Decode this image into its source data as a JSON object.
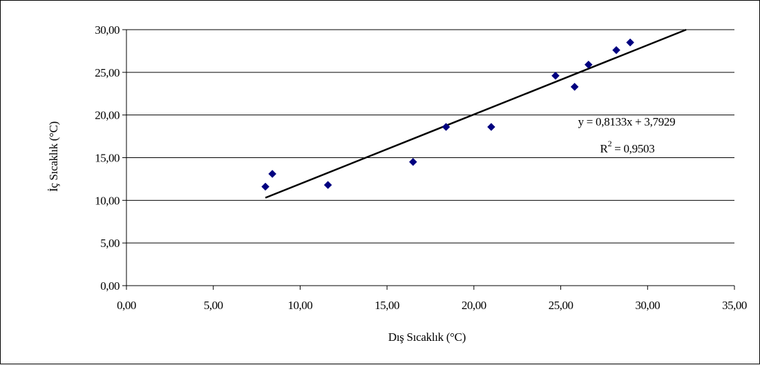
{
  "chart_data": {
    "type": "scatter",
    "xlabel": "Dış Sıcaklık (°C)",
    "ylabel": "İç Sıcaklık (°C)",
    "xlim": [
      0,
      35
    ],
    "ylim": [
      0,
      30
    ],
    "xticks": [
      "0,00",
      "5,00",
      "10,00",
      "15,00",
      "20,00",
      "25,00",
      "30,00",
      "35,00"
    ],
    "yticks": [
      "0,00",
      "5,00",
      "10,00",
      "15,00",
      "20,00",
      "25,00",
      "30,00"
    ],
    "grid": "horizontal",
    "legend": "none",
    "series": [
      {
        "marker": "diamond",
        "color": "#000080",
        "points": [
          {
            "x": 8.0,
            "y": 11.6
          },
          {
            "x": 8.4,
            "y": 13.1
          },
          {
            "x": 11.6,
            "y": 11.8
          },
          {
            "x": 16.5,
            "y": 14.5
          },
          {
            "x": 18.4,
            "y": 18.6
          },
          {
            "x": 21.0,
            "y": 18.6
          },
          {
            "x": 24.7,
            "y": 24.6
          },
          {
            "x": 25.8,
            "y": 23.3
          },
          {
            "x": 26.6,
            "y": 25.9
          },
          {
            "x": 28.2,
            "y": 27.6
          },
          {
            "x": 29.0,
            "y": 28.5
          }
        ]
      }
    ],
    "trendline": {
      "type": "linear",
      "slope": 0.8133,
      "intercept": 3.7929,
      "x_from": 8.0,
      "equation": "y = 0,8133x + 3,7929",
      "r2_prefix": "R",
      "r2_superscript": "2",
      "r2_value": " = 0,9503",
      "color": "#000000"
    }
  }
}
